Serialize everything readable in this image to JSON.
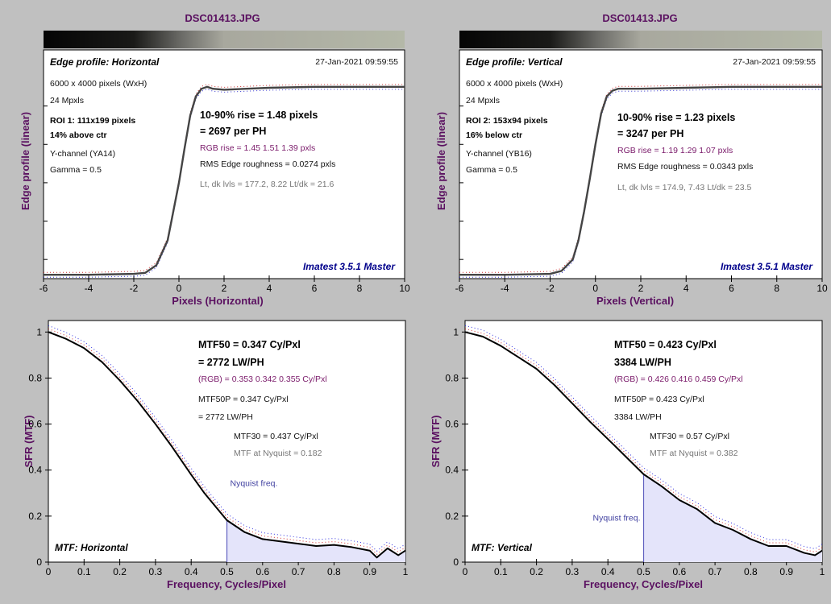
{
  "panels": [
    {
      "file_title": "DSC01413.JPG",
      "title": "Edge profile: Horizontal",
      "timestamp": "27-Jan-2021 09:59:55",
      "image_size": "6000 x 4000 pixels (WxH)",
      "mpxls": "24 Mpxls",
      "roi": "ROI 1:  111x199 pixels",
      "roi_pos": "14% above ctr",
      "channel": "Y-channel  (YA14)",
      "gamma": "Gamma = 0.5",
      "rise": "10-90% rise = 1.48 pixels",
      "per_ph": "= 2697 per PH",
      "rgb_rise": "RGB rise = 1.45  1.51  1.39 pxls",
      "roughness": "RMS Edge roughness = 0.0274 pxls",
      "levels": "Lt, dk lvls = 177.2, 8.22   Lt/dk = 21.6",
      "brand": "Imatest 3.5.1 Master",
      "xlabel": "Pixels (Horizontal)",
      "ylabel": "Edge profile (linear)"
    },
    {
      "file_title": "DSC01413.JPG",
      "title": "Edge profile: Vertical",
      "timestamp": "27-Jan-2021 09:59:55",
      "image_size": "6000 x 4000 pixels (WxH)",
      "mpxls": "24 Mpxls",
      "roi": "ROI 2:  153x94 pixels",
      "roi_pos": "16% below ctr",
      "channel": "Y-channel  (YB16)",
      "gamma": "Gamma = 0.5",
      "rise": "10-90% rise = 1.23 pixels",
      "per_ph": "= 3247 per PH",
      "rgb_rise": "RGB rise = 1.19  1.29  1.07 pxls",
      "roughness": "RMS Edge roughness = 0.0343 pxls",
      "levels": "Lt, dk lvls = 174.9, 7.43   Lt/dk = 23.5",
      "brand": "Imatest 3.5.1 Master",
      "xlabel": "Pixels (Vertical)",
      "ylabel": "Edge profile (linear)"
    },
    {
      "title": "MTF: Horizontal",
      "mtf50": "MTF50 = 0.347 Cy/Pxl",
      "lwph": "= 2772 LW/PH",
      "rgb": "(RGB) = 0.353  0.342  0.355 Cy/Pxl",
      "mtf50p": "MTF50P = 0.347 Cy/Pxl",
      "mtf50p_lwph": "= 2772 LW/PH",
      "mtf30": "MTF30 = 0.437 Cy/Pxl",
      "nyq_mtf": "MTF at Nyquist = 0.182",
      "nyquist_label": "Nyquist freq.",
      "xlabel": "Frequency, Cycles/Pixel",
      "ylabel": "SFR (MTF)"
    },
    {
      "title": "MTF: Vertical",
      "mtf50": "MTF50 = 0.423 Cy/Pxl",
      "lwph": "3384 LW/PH",
      "rgb": "(RGB) = 0.426  0.416  0.459 Cy/Pxl",
      "mtf50p": "MTF50P = 0.423 Cy/Pxl",
      "mtf50p_lwph": "3384 LW/PH",
      "mtf30": "MTF30 = 0.57 Cy/Pxl",
      "nyq_mtf": "MTF at Nyquist = 0.382",
      "nyquist_label": "Nyquist freq.",
      "xlabel": "Frequency, Cycles/Pixel",
      "ylabel": "SFR (MTF)"
    }
  ],
  "chart_data": [
    {
      "type": "line",
      "title": "Edge profile: Horizontal",
      "xlabel": "Pixels (Horizontal)",
      "ylabel": "Edge profile (linear)",
      "xlim": [
        -6,
        10
      ],
      "xticks": [
        "-6",
        "-4",
        "-2",
        "0",
        "2",
        "4",
        "6",
        "8",
        "10"
      ],
      "ylim": [
        0,
        1.1
      ],
      "grid": false,
      "series": [
        {
          "x": [
            -6,
            -4,
            -2,
            -1.5,
            -1,
            -0.5,
            0,
            0.25,
            0.5,
            0.75,
            1,
            1.25,
            1.5,
            2,
            3,
            4,
            6,
            8,
            10
          ],
          "values": [
            0.02,
            0.02,
            0.025,
            0.03,
            0.07,
            0.2,
            0.5,
            0.68,
            0.85,
            0.95,
            0.99,
            1.0,
            0.99,
            0.985,
            0.99,
            0.995,
            1.0,
            1.0,
            1.0
          ]
        }
      ]
    },
    {
      "type": "line",
      "title": "Edge profile: Vertical",
      "xlabel": "Pixels (Vertical)",
      "ylabel": "Edge profile (linear)",
      "xlim": [
        -6,
        10
      ],
      "xticks": [
        "-6",
        "-4",
        "-2",
        "0",
        "2",
        "4",
        "6",
        "8",
        "10"
      ],
      "ylim": [
        0,
        1.1
      ],
      "grid": false,
      "series": [
        {
          "x": [
            -6,
            -4,
            -2,
            -1.5,
            -1,
            -0.75,
            -0.5,
            -0.25,
            0,
            0.25,
            0.5,
            0.75,
            1,
            2,
            4,
            6,
            8,
            10
          ],
          "values": [
            0.02,
            0.02,
            0.025,
            0.04,
            0.1,
            0.2,
            0.35,
            0.52,
            0.7,
            0.86,
            0.95,
            0.98,
            0.99,
            0.99,
            0.995,
            1.0,
            1.0,
            1.0
          ]
        }
      ]
    },
    {
      "type": "line",
      "title": "MTF: Horizontal",
      "xlabel": "Frequency, Cycles/Pixel",
      "ylabel": "SFR (MTF)",
      "xlim": [
        0,
        1
      ],
      "ylim": [
        0,
        1.05
      ],
      "xticks": [
        "0",
        "0.1",
        "0.2",
        "0.3",
        "0.4",
        "0.5",
        "0.6",
        "0.7",
        "0.8",
        "0.9",
        "1"
      ],
      "yticks": [
        "0",
        "0.2",
        "0.4",
        "0.6",
        "0.8",
        "1"
      ],
      "nyquist": 0.5,
      "series": [
        {
          "x": [
            0,
            0.05,
            0.1,
            0.15,
            0.2,
            0.25,
            0.3,
            0.347,
            0.4,
            0.437,
            0.5,
            0.55,
            0.6,
            0.65,
            0.7,
            0.75,
            0.8,
            0.85,
            0.9,
            0.92,
            0.95,
            0.98,
            1.0
          ],
          "values": [
            1.0,
            0.97,
            0.93,
            0.87,
            0.79,
            0.7,
            0.6,
            0.5,
            0.38,
            0.3,
            0.182,
            0.13,
            0.1,
            0.09,
            0.08,
            0.07,
            0.075,
            0.065,
            0.05,
            0.02,
            0.06,
            0.03,
            0.05
          ]
        }
      ]
    },
    {
      "type": "line",
      "title": "MTF: Vertical",
      "xlabel": "Frequency, Cycles/Pixel",
      "ylabel": "SFR (MTF)",
      "xlim": [
        0,
        1
      ],
      "ylim": [
        0,
        1.05
      ],
      "xticks": [
        "0",
        "0.1",
        "0.2",
        "0.3",
        "0.4",
        "0.5",
        "0.6",
        "0.7",
        "0.8",
        "0.9",
        "1"
      ],
      "yticks": [
        "0",
        "0.2",
        "0.4",
        "0.6",
        "0.8",
        "1"
      ],
      "nyquist": 0.5,
      "series": [
        {
          "x": [
            0,
            0.05,
            0.1,
            0.15,
            0.2,
            0.25,
            0.3,
            0.35,
            0.423,
            0.5,
            0.55,
            0.6,
            0.65,
            0.7,
            0.75,
            0.8,
            0.85,
            0.9,
            0.95,
            0.98,
            1.0
          ],
          "values": [
            1.0,
            0.98,
            0.94,
            0.89,
            0.84,
            0.77,
            0.69,
            0.61,
            0.5,
            0.382,
            0.33,
            0.27,
            0.23,
            0.17,
            0.14,
            0.1,
            0.07,
            0.07,
            0.04,
            0.03,
            0.05
          ]
        }
      ]
    }
  ]
}
